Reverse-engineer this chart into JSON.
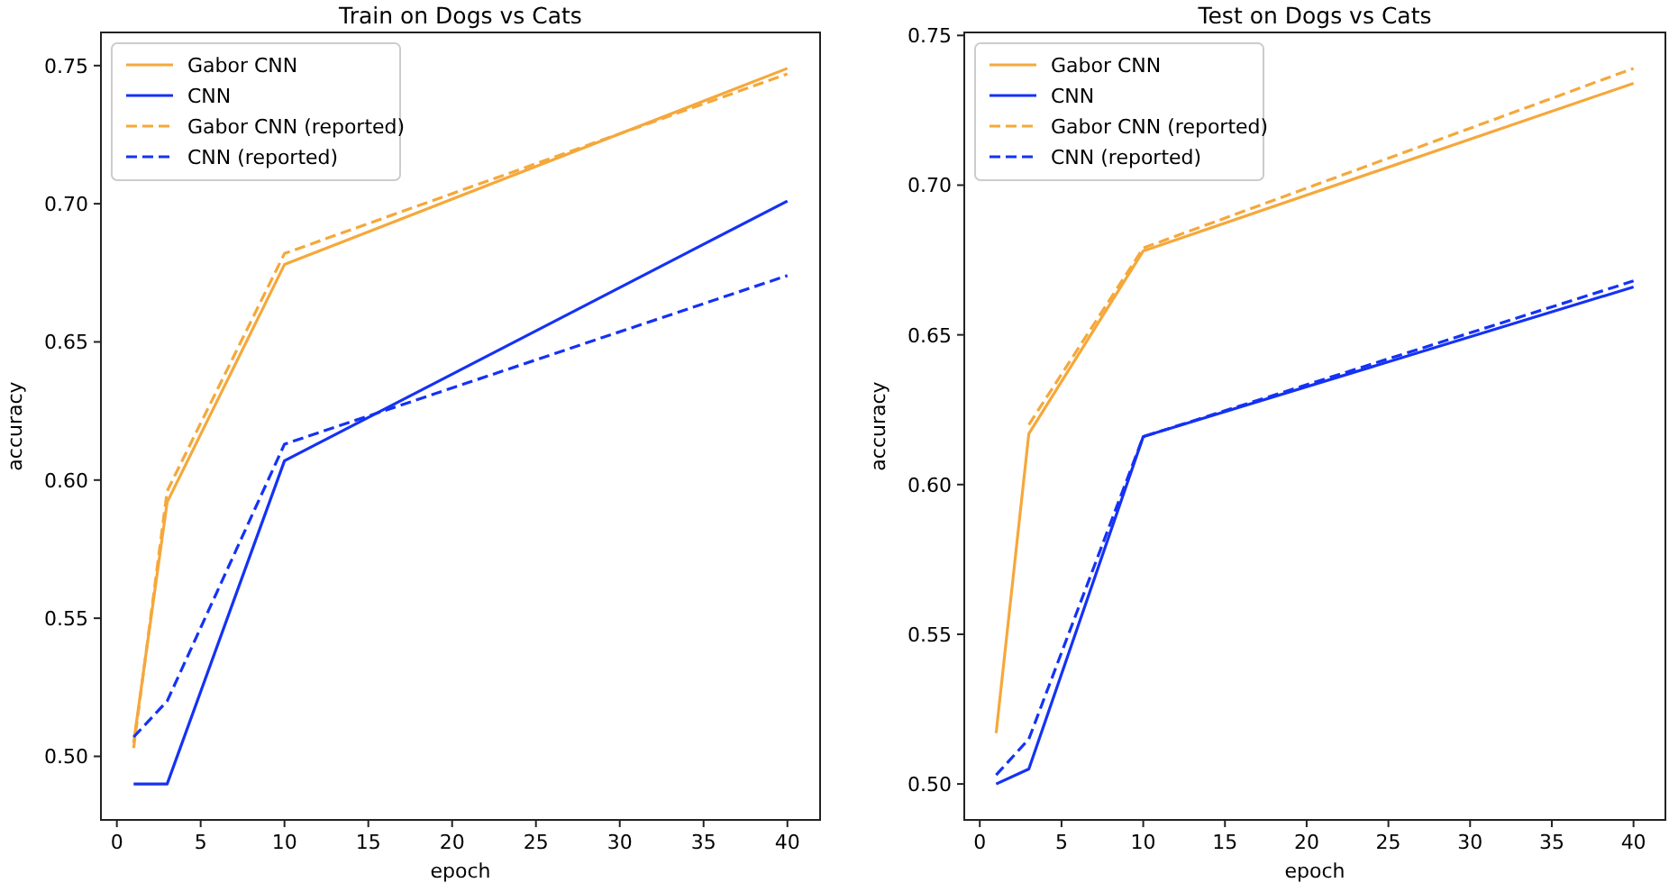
{
  "chart_data": [
    {
      "type": "line",
      "title": "Train on Dogs vs Cats",
      "xlabel": "epoch",
      "ylabel": "accuracy",
      "x": [
        1,
        3,
        10,
        40
      ],
      "xlim": [
        -0.95,
        41.95
      ],
      "ylim": [
        0.477,
        0.762
      ],
      "xticks": [
        0,
        5,
        10,
        15,
        20,
        25,
        30,
        35,
        40
      ],
      "yticks": [
        {
          "value": 0.5,
          "label": "0.50"
        },
        {
          "value": 0.55,
          "label": "0.55"
        },
        {
          "value": 0.6,
          "label": "0.60"
        },
        {
          "value": 0.65,
          "label": "0.65"
        },
        {
          "value": 0.7,
          "label": "0.70"
        },
        {
          "value": 0.75,
          "label": "0.75"
        }
      ],
      "grid": false,
      "legend": "top left",
      "marker": "none",
      "series": [
        {
          "name": "Gabor CNN",
          "color": "#f5a83b",
          "values": [
            0.505,
            0.592,
            0.678,
            0.749
          ],
          "line_style": "solid"
        },
        {
          "name": "CNN",
          "color": "#1432f5",
          "values": [
            0.49,
            0.49,
            0.607,
            0.701
          ],
          "line_style": "solid"
        },
        {
          "name": "Gabor CNN (reported)",
          "color": "#f5a83b",
          "values": [
            0.503,
            0.596,
            0.682,
            0.747
          ],
          "line_style": "dashed"
        },
        {
          "name": "CNN (reported)",
          "color": "#1432f5",
          "values": [
            0.507,
            0.52,
            0.613,
            0.674
          ],
          "line_style": "dashed"
        }
      ]
    },
    {
      "type": "line",
      "title": "Test on Dogs vs Cats",
      "xlabel": "epoch",
      "ylabel": "accuracy",
      "x": [
        1,
        3,
        10,
        40
      ],
      "xlim": [
        -0.95,
        41.95
      ],
      "ylim": [
        0.488,
        0.751
      ],
      "xticks": [
        0,
        5,
        10,
        15,
        20,
        25,
        30,
        35,
        40
      ],
      "yticks": [
        {
          "value": 0.5,
          "label": "0.50"
        },
        {
          "value": 0.55,
          "label": "0.55"
        },
        {
          "value": 0.6,
          "label": "0.60"
        },
        {
          "value": 0.65,
          "label": "0.65"
        },
        {
          "value": 0.7,
          "label": "0.70"
        },
        {
          "value": 0.75,
          "label": "0.75"
        }
      ],
      "grid": false,
      "legend": "top left",
      "marker": "none",
      "series": [
        {
          "name": "Gabor CNN",
          "color": "#f5a83b",
          "values": [
            0.517,
            0.617,
            0.678,
            0.734
          ],
          "line_style": "solid"
        },
        {
          "name": "CNN",
          "color": "#1432f5",
          "values": [
            0.5,
            0.505,
            0.616,
            0.666
          ],
          "line_style": "solid"
        },
        {
          "name": "Gabor CNN (reported)",
          "color": "#f5a83b",
          "values": [
            null,
            0.62,
            0.679,
            0.739
          ],
          "line_style": "dashed"
        },
        {
          "name": "CNN (reported)",
          "color": "#1432f5",
          "values": [
            0.503,
            0.515,
            0.616,
            0.668
          ],
          "line_style": "dashed"
        }
      ]
    }
  ]
}
